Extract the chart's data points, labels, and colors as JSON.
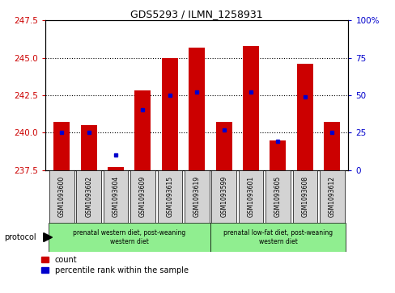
{
  "title": "GDS5293 / ILMN_1258931",
  "samples": [
    "GSM1093600",
    "GSM1093602",
    "GSM1093604",
    "GSM1093609",
    "GSM1093615",
    "GSM1093619",
    "GSM1093599",
    "GSM1093601",
    "GSM1093605",
    "GSM1093608",
    "GSM1093612"
  ],
  "bar_bottoms": [
    237.5,
    237.5,
    237.5,
    237.5,
    237.5,
    237.5,
    237.5,
    237.5,
    237.5,
    237.5,
    237.5
  ],
  "bar_tops": [
    240.7,
    240.5,
    237.7,
    242.8,
    245.0,
    245.7,
    240.7,
    245.8,
    239.5,
    244.6,
    240.7
  ],
  "percentile_values": [
    240.0,
    240.0,
    238.5,
    241.5,
    242.5,
    242.7,
    240.2,
    242.7,
    239.4,
    242.4,
    240.0
  ],
  "ylim_left": [
    237.5,
    247.5
  ],
  "yticks_left": [
    237.5,
    240.0,
    242.5,
    245.0,
    247.5
  ],
  "ylim_right": [
    0,
    100
  ],
  "yticks_right": [
    0,
    25,
    50,
    75,
    100
  ],
  "ytick_labels_right": [
    "0",
    "25",
    "50",
    "75",
    "100%"
  ],
  "bar_color": "#cc0000",
  "dot_color": "#0000cc",
  "group1_label": "prenatal western diet, post-weaning\nwestern diet",
  "group2_label": "prenatal low-fat diet, post-weaning\nwestern diet",
  "group1_count": 6,
  "group2_count": 5,
  "protocol_label": "protocol",
  "legend_count_label": "count",
  "legend_percentile_label": "percentile rank within the sample",
  "left_tick_color": "#cc0000",
  "right_tick_color": "#0000cc",
  "grid_yticks": [
    240.0,
    242.5,
    245.0
  ],
  "label_box_color": "#d3d3d3",
  "group1_box_color": "#90ee90",
  "group2_box_color": "#90ee90"
}
